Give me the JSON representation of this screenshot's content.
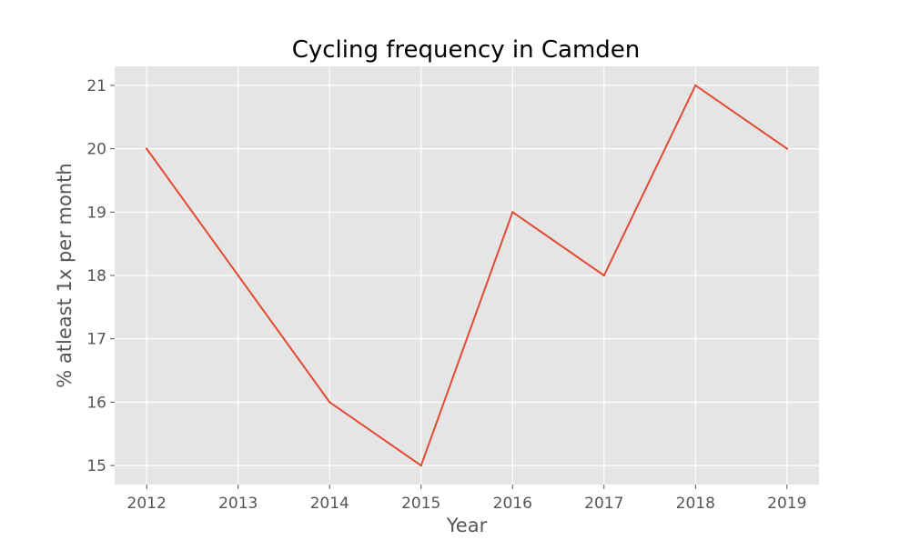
{
  "chart_data": {
    "type": "line",
    "title": "Cycling frequency in Camden",
    "xlabel": "Year",
    "ylabel": "% atleast 1x per month",
    "x": [
      2012,
      2013,
      2014,
      2015,
      2016,
      2017,
      2018,
      2019
    ],
    "series": [
      {
        "values": [
          20,
          18,
          16,
          15,
          19,
          18,
          21,
          20
        ]
      }
    ],
    "xticks": [
      "2012",
      "2013",
      "2014",
      "2015",
      "2016",
      "2017",
      "2018",
      "2019"
    ],
    "yticks": [
      "15",
      "16",
      "17",
      "18",
      "19",
      "20",
      "21"
    ],
    "xlim": [
      2011.65,
      2019.35
    ],
    "ylim": [
      14.7,
      21.3
    ],
    "grid": true,
    "line_color": "#E24A33",
    "plot_background": "#E5E5E5"
  }
}
